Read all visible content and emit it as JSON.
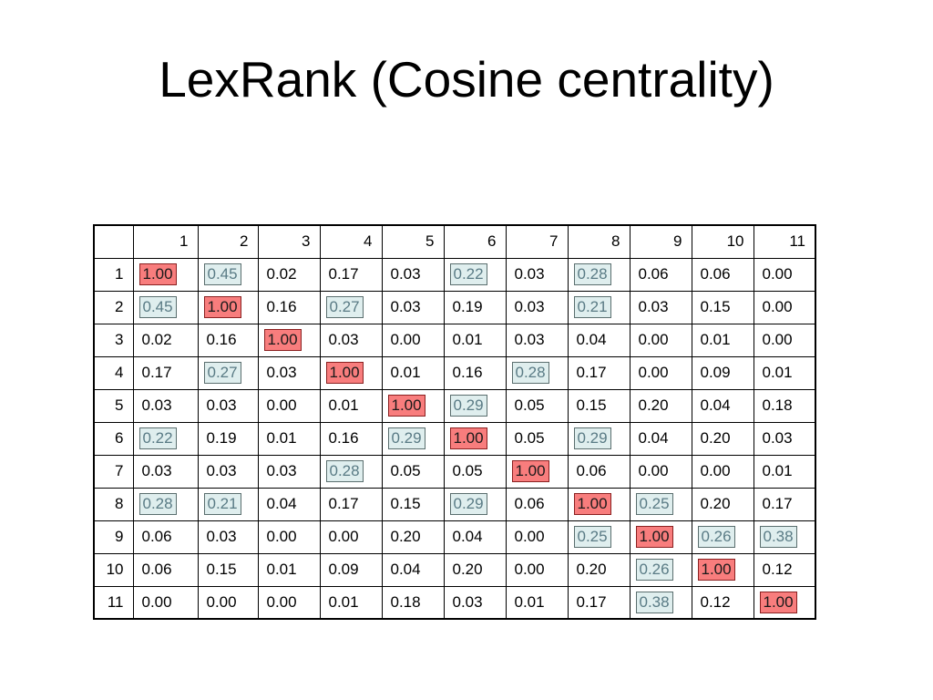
{
  "title": "LexRank (Cosine centrality)",
  "table": {
    "columns": [
      "1",
      "2",
      "3",
      "4",
      "5",
      "6",
      "7",
      "8",
      "9",
      "10",
      "11"
    ],
    "rows": [
      {
        "label": "1",
        "cells": [
          {
            "v": "1.00",
            "s": "diag"
          },
          {
            "v": "0.45",
            "s": "hi"
          },
          {
            "v": "0.02",
            "s": ""
          },
          {
            "v": "0.17",
            "s": ""
          },
          {
            "v": "0.03",
            "s": ""
          },
          {
            "v": "0.22",
            "s": "hi"
          },
          {
            "v": "0.03",
            "s": ""
          },
          {
            "v": "0.28",
            "s": "hi"
          },
          {
            "v": "0.06",
            "s": ""
          },
          {
            "v": "0.06",
            "s": ""
          },
          {
            "v": "0.00",
            "s": ""
          }
        ]
      },
      {
        "label": "2",
        "cells": [
          {
            "v": "0.45",
            "s": "hi"
          },
          {
            "v": "1.00",
            "s": "diag"
          },
          {
            "v": "0.16",
            "s": ""
          },
          {
            "v": "0.27",
            "s": "hi"
          },
          {
            "v": "0.03",
            "s": ""
          },
          {
            "v": "0.19",
            "s": ""
          },
          {
            "v": "0.03",
            "s": ""
          },
          {
            "v": "0.21",
            "s": "hi"
          },
          {
            "v": "0.03",
            "s": ""
          },
          {
            "v": "0.15",
            "s": ""
          },
          {
            "v": "0.00",
            "s": ""
          }
        ]
      },
      {
        "label": "3",
        "cells": [
          {
            "v": "0.02",
            "s": ""
          },
          {
            "v": "0.16",
            "s": ""
          },
          {
            "v": "1.00",
            "s": "diag"
          },
          {
            "v": "0.03",
            "s": ""
          },
          {
            "v": "0.00",
            "s": ""
          },
          {
            "v": "0.01",
            "s": ""
          },
          {
            "v": "0.03",
            "s": ""
          },
          {
            "v": "0.04",
            "s": ""
          },
          {
            "v": "0.00",
            "s": ""
          },
          {
            "v": "0.01",
            "s": ""
          },
          {
            "v": "0.00",
            "s": ""
          }
        ]
      },
      {
        "label": "4",
        "cells": [
          {
            "v": "0.17",
            "s": ""
          },
          {
            "v": "0.27",
            "s": "hi"
          },
          {
            "v": "0.03",
            "s": ""
          },
          {
            "v": "1.00",
            "s": "diag"
          },
          {
            "v": "0.01",
            "s": ""
          },
          {
            "v": "0.16",
            "s": ""
          },
          {
            "v": "0.28",
            "s": "hi"
          },
          {
            "v": "0.17",
            "s": ""
          },
          {
            "v": "0.00",
            "s": ""
          },
          {
            "v": "0.09",
            "s": ""
          },
          {
            "v": "0.01",
            "s": ""
          }
        ]
      },
      {
        "label": "5",
        "cells": [
          {
            "v": "0.03",
            "s": ""
          },
          {
            "v": "0.03",
            "s": ""
          },
          {
            "v": "0.00",
            "s": ""
          },
          {
            "v": "0.01",
            "s": ""
          },
          {
            "v": "1.00",
            "s": "diag"
          },
          {
            "v": "0.29",
            "s": "hi"
          },
          {
            "v": "0.05",
            "s": ""
          },
          {
            "v": "0.15",
            "s": ""
          },
          {
            "v": "0.20",
            "s": ""
          },
          {
            "v": "0.04",
            "s": ""
          },
          {
            "v": "0.18",
            "s": ""
          }
        ]
      },
      {
        "label": "6",
        "cells": [
          {
            "v": "0.22",
            "s": "hi"
          },
          {
            "v": "0.19",
            "s": ""
          },
          {
            "v": "0.01",
            "s": ""
          },
          {
            "v": "0.16",
            "s": ""
          },
          {
            "v": "0.29",
            "s": "hi"
          },
          {
            "v": "1.00",
            "s": "diag"
          },
          {
            "v": "0.05",
            "s": ""
          },
          {
            "v": "0.29",
            "s": "hi"
          },
          {
            "v": "0.04",
            "s": ""
          },
          {
            "v": "0.20",
            "s": ""
          },
          {
            "v": "0.03",
            "s": ""
          }
        ]
      },
      {
        "label": "7",
        "cells": [
          {
            "v": "0.03",
            "s": ""
          },
          {
            "v": "0.03",
            "s": ""
          },
          {
            "v": "0.03",
            "s": ""
          },
          {
            "v": "0.28",
            "s": "hi"
          },
          {
            "v": "0.05",
            "s": ""
          },
          {
            "v": "0.05",
            "s": ""
          },
          {
            "v": "1.00",
            "s": "diag"
          },
          {
            "v": "0.06",
            "s": ""
          },
          {
            "v": "0.00",
            "s": ""
          },
          {
            "v": "0.00",
            "s": ""
          },
          {
            "v": "0.01",
            "s": ""
          }
        ]
      },
      {
        "label": "8",
        "cells": [
          {
            "v": "0.28",
            "s": "hi"
          },
          {
            "v": "0.21",
            "s": "hi"
          },
          {
            "v": "0.04",
            "s": ""
          },
          {
            "v": "0.17",
            "s": ""
          },
          {
            "v": "0.15",
            "s": ""
          },
          {
            "v": "0.29",
            "s": "hi"
          },
          {
            "v": "0.06",
            "s": ""
          },
          {
            "v": "1.00",
            "s": "diag"
          },
          {
            "v": "0.25",
            "s": "hi"
          },
          {
            "v": "0.20",
            "s": ""
          },
          {
            "v": "0.17",
            "s": ""
          }
        ]
      },
      {
        "label": "9",
        "cells": [
          {
            "v": "0.06",
            "s": ""
          },
          {
            "v": "0.03",
            "s": ""
          },
          {
            "v": "0.00",
            "s": ""
          },
          {
            "v": "0.00",
            "s": ""
          },
          {
            "v": "0.20",
            "s": ""
          },
          {
            "v": "0.04",
            "s": ""
          },
          {
            "v": "0.00",
            "s": ""
          },
          {
            "v": "0.25",
            "s": "hi"
          },
          {
            "v": "1.00",
            "s": "diag"
          },
          {
            "v": "0.26",
            "s": "hi"
          },
          {
            "v": "0.38",
            "s": "hi"
          }
        ]
      },
      {
        "label": "10",
        "cells": [
          {
            "v": "0.06",
            "s": ""
          },
          {
            "v": "0.15",
            "s": ""
          },
          {
            "v": "0.01",
            "s": ""
          },
          {
            "v": "0.09",
            "s": ""
          },
          {
            "v": "0.04",
            "s": ""
          },
          {
            "v": "0.20",
            "s": ""
          },
          {
            "v": "0.00",
            "s": ""
          },
          {
            "v": "0.20",
            "s": ""
          },
          {
            "v": "0.26",
            "s": "hi"
          },
          {
            "v": "1.00",
            "s": "diag"
          },
          {
            "v": "0.12",
            "s": ""
          }
        ]
      },
      {
        "label": "11",
        "cells": [
          {
            "v": "0.00",
            "s": ""
          },
          {
            "v": "0.00",
            "s": ""
          },
          {
            "v": "0.00",
            "s": ""
          },
          {
            "v": "0.01",
            "s": ""
          },
          {
            "v": "0.18",
            "s": ""
          },
          {
            "v": "0.03",
            "s": ""
          },
          {
            "v": "0.01",
            "s": ""
          },
          {
            "v": "0.17",
            "s": ""
          },
          {
            "v": "0.38",
            "s": "hi"
          },
          {
            "v": "0.12",
            "s": ""
          },
          {
            "v": "1.00",
            "s": "diag"
          }
        ]
      }
    ]
  },
  "colors": {
    "diagonal_fill": "#f87d7d",
    "highlight_fill": "#dfeeee",
    "highlight_text": "#5a7b85",
    "header_text": "#1a1a7a"
  }
}
